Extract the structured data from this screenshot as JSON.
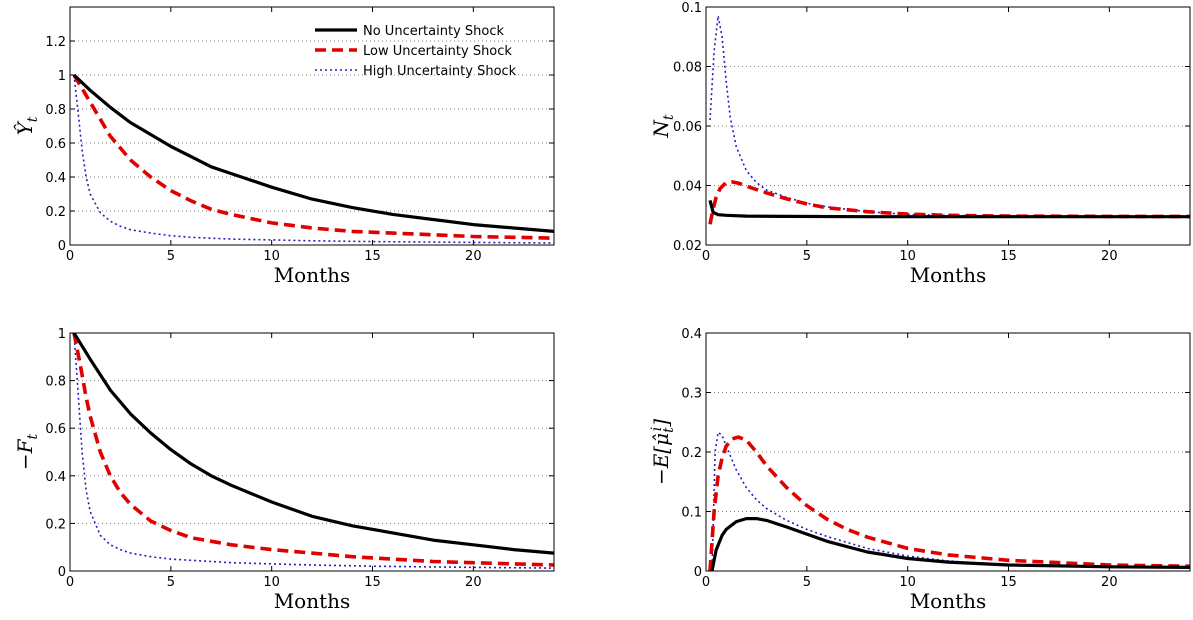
{
  "colors": {
    "no_shock": "#000000",
    "low_shock": "#e00000",
    "high_shock": "#2020c0",
    "grid": "#7f7f7f"
  },
  "chart_data": [
    {
      "type": "line",
      "panel": "top-left",
      "xlabel": "Months",
      "ylabel": "Ŷ_t",
      "xlim": [
        0,
        24
      ],
      "ylim": [
        0,
        1.4
      ],
      "xticks": [
        0,
        5,
        10,
        15,
        20
      ],
      "yticks": [
        0,
        0.2,
        0.4,
        0.6,
        0.8,
        1,
        1.2
      ],
      "ytick_labels": [
        "0",
        "0.2",
        "0.4",
        "0.6",
        "0.8",
        "1",
        "1.2"
      ],
      "grid": "horizontal-dotted",
      "legend": {
        "placement": "top-right",
        "entries": [
          "No Uncertainty Shock",
          "Low Uncertainty Shock",
          "High Uncertainty Shock"
        ]
      },
      "series": [
        {
          "name": "No Uncertainty Shock",
          "style": "solid",
          "x": [
            0.2,
            1,
            2,
            3,
            4,
            5,
            6,
            7,
            8,
            10,
            12,
            14,
            16,
            18,
            20,
            22,
            24
          ],
          "y": [
            1.0,
            0.91,
            0.81,
            0.72,
            0.65,
            0.58,
            0.52,
            0.46,
            0.42,
            0.34,
            0.27,
            0.22,
            0.18,
            0.15,
            0.12,
            0.1,
            0.08
          ]
        },
        {
          "name": "Low Uncertainty Shock",
          "style": "dashed",
          "x": [
            0.2,
            0.5,
            1,
            1.5,
            2,
            3,
            4,
            5,
            6,
            7,
            8,
            10,
            12,
            14,
            16,
            18,
            20,
            22,
            24
          ],
          "y": [
            1.0,
            0.94,
            0.84,
            0.74,
            0.64,
            0.5,
            0.4,
            0.32,
            0.26,
            0.21,
            0.18,
            0.13,
            0.1,
            0.08,
            0.07,
            0.06,
            0.05,
            0.045,
            0.04
          ]
        },
        {
          "name": "High Uncertainty Shock",
          "style": "dotted",
          "x": [
            0.2,
            0.4,
            0.6,
            0.8,
            1,
            1.5,
            2,
            2.5,
            3,
            4,
            5,
            6,
            8,
            10,
            12,
            15,
            20,
            24
          ],
          "y": [
            1.0,
            0.78,
            0.56,
            0.4,
            0.3,
            0.19,
            0.14,
            0.11,
            0.09,
            0.07,
            0.055,
            0.045,
            0.035,
            0.03,
            0.025,
            0.02,
            0.015,
            0.012
          ]
        }
      ]
    },
    {
      "type": "line",
      "panel": "top-right",
      "xlabel": "Months",
      "ylabel": "N_t",
      "xlim": [
        0,
        24
      ],
      "ylim": [
        0.02,
        0.1
      ],
      "xticks": [
        0,
        5,
        10,
        15,
        20
      ],
      "yticks": [
        0.02,
        0.04,
        0.06,
        0.08,
        0.1
      ],
      "ytick_labels": [
        "0.02",
        "0.04",
        "0.06",
        "0.08",
        "0.1"
      ],
      "grid": "horizontal-dotted",
      "series": [
        {
          "name": "No Uncertainty Shock",
          "style": "solid",
          "x": [
            0.2,
            0.35,
            0.6,
            1,
            2,
            4,
            8,
            24
          ],
          "y": [
            0.035,
            0.031,
            0.0302,
            0.03,
            0.0297,
            0.0296,
            0.0295,
            0.0295
          ]
        },
        {
          "name": "Low Uncertainty Shock",
          "style": "dashed",
          "x": [
            0.2,
            0.35,
            0.5,
            0.7,
            1,
            1.3,
            1.6,
            2,
            3,
            4,
            5,
            6,
            8,
            10,
            12,
            15,
            20,
            24
          ],
          "y": [
            0.027,
            0.032,
            0.036,
            0.039,
            0.041,
            0.0412,
            0.0408,
            0.0398,
            0.0375,
            0.0355,
            0.0338,
            0.0325,
            0.0312,
            0.0304,
            0.03,
            0.0297,
            0.0296,
            0.0296
          ]
        },
        {
          "name": "High Uncertainty Shock",
          "style": "dotted",
          "x": [
            0.2,
            0.4,
            0.6,
            0.8,
            1,
            1.2,
            1.5,
            2,
            2.5,
            3,
            4,
            5,
            6,
            8,
            10,
            12,
            15,
            20,
            24
          ],
          "y": [
            0.062,
            0.085,
            0.097,
            0.09,
            0.075,
            0.063,
            0.053,
            0.045,
            0.041,
            0.0385,
            0.036,
            0.034,
            0.0328,
            0.0312,
            0.0303,
            0.0299,
            0.0297,
            0.0296,
            0.0296
          ]
        }
      ]
    },
    {
      "type": "line",
      "panel": "bottom-left",
      "xlabel": "Months",
      "ylabel": "−F_t",
      "xlim": [
        0,
        24
      ],
      "ylim": [
        0,
        1
      ],
      "xticks": [
        0,
        5,
        10,
        15,
        20
      ],
      "yticks": [
        0,
        0.2,
        0.4,
        0.6,
        0.8,
        1
      ],
      "ytick_labels": [
        "0",
        "0.2",
        "0.4",
        "0.6",
        "0.8",
        "1"
      ],
      "grid": "horizontal-dotted",
      "series": [
        {
          "name": "No Uncertainty Shock",
          "style": "solid",
          "x": [
            0.2,
            1,
            2,
            3,
            4,
            5,
            6,
            7,
            8,
            10,
            12,
            14,
            16,
            18,
            20,
            22,
            24
          ],
          "y": [
            1.0,
            0.89,
            0.76,
            0.66,
            0.58,
            0.51,
            0.45,
            0.4,
            0.36,
            0.29,
            0.23,
            0.19,
            0.16,
            0.13,
            0.11,
            0.09,
            0.075
          ]
        },
        {
          "name": "Low Uncertainty Shock",
          "style": "dashed",
          "x": [
            0.2,
            0.5,
            0.8,
            1,
            1.5,
            2,
            2.5,
            3,
            4,
            5,
            6,
            8,
            10,
            12,
            14,
            16,
            18,
            20,
            22,
            24
          ],
          "y": [
            1.0,
            0.87,
            0.73,
            0.65,
            0.5,
            0.4,
            0.33,
            0.28,
            0.21,
            0.17,
            0.14,
            0.11,
            0.09,
            0.075,
            0.06,
            0.05,
            0.04,
            0.035,
            0.03,
            0.025
          ]
        },
        {
          "name": "High Uncertainty Shock",
          "style": "dotted",
          "x": [
            0.2,
            0.4,
            0.6,
            0.8,
            1,
            1.5,
            2,
            2.5,
            3,
            4,
            5,
            6,
            8,
            10,
            12,
            15,
            20,
            24
          ],
          "y": [
            1.0,
            0.75,
            0.5,
            0.34,
            0.25,
            0.15,
            0.11,
            0.09,
            0.075,
            0.06,
            0.05,
            0.045,
            0.035,
            0.03,
            0.025,
            0.02,
            0.015,
            0.012
          ]
        }
      ]
    },
    {
      "type": "line",
      "panel": "bottom-right",
      "xlabel": "Months",
      "ylabel": "−E[μ̂_t^i]",
      "xlim": [
        0,
        24
      ],
      "ylim": [
        0,
        0.4
      ],
      "xticks": [
        0,
        5,
        10,
        15,
        20
      ],
      "yticks": [
        0,
        0.1,
        0.2,
        0.3,
        0.4
      ],
      "ytick_labels": [
        "0",
        "0.1",
        "0.2",
        "0.3",
        "0.4"
      ],
      "grid": "horizontal-dotted",
      "series": [
        {
          "name": "No Uncertainty Shock",
          "style": "solid",
          "x": [
            0.3,
            0.5,
            0.8,
            1,
            1.5,
            2,
            2.5,
            3,
            4,
            5,
            6,
            8,
            10,
            12,
            15,
            20,
            24
          ],
          "y": [
            0.0,
            0.035,
            0.06,
            0.07,
            0.083,
            0.088,
            0.088,
            0.085,
            0.074,
            0.062,
            0.05,
            0.032,
            0.021,
            0.015,
            0.01,
            0.007,
            0.006
          ]
        },
        {
          "name": "Low Uncertainty Shock",
          "style": "dashed",
          "x": [
            0.2,
            0.4,
            0.6,
            0.8,
            1,
            1.3,
            1.6,
            2,
            2.5,
            3,
            4,
            5,
            6,
            7,
            8,
            10,
            12,
            15,
            20,
            24
          ],
          "y": [
            0.0,
            0.1,
            0.16,
            0.19,
            0.21,
            0.222,
            0.225,
            0.22,
            0.2,
            0.177,
            0.14,
            0.11,
            0.087,
            0.07,
            0.057,
            0.038,
            0.027,
            0.018,
            0.01,
            0.008
          ]
        },
        {
          "name": "High Uncertainty Shock",
          "style": "dotted",
          "x": [
            0.3,
            0.45,
            0.6,
            0.8,
            1,
            1.5,
            2,
            2.5,
            3,
            4,
            5,
            6,
            8,
            10,
            12,
            15,
            20,
            24
          ],
          "y": [
            0.0,
            0.2,
            0.233,
            0.228,
            0.21,
            0.17,
            0.14,
            0.12,
            0.105,
            0.085,
            0.07,
            0.058,
            0.038,
            0.025,
            0.017,
            0.01,
            0.007,
            0.006
          ]
        }
      ]
    }
  ]
}
